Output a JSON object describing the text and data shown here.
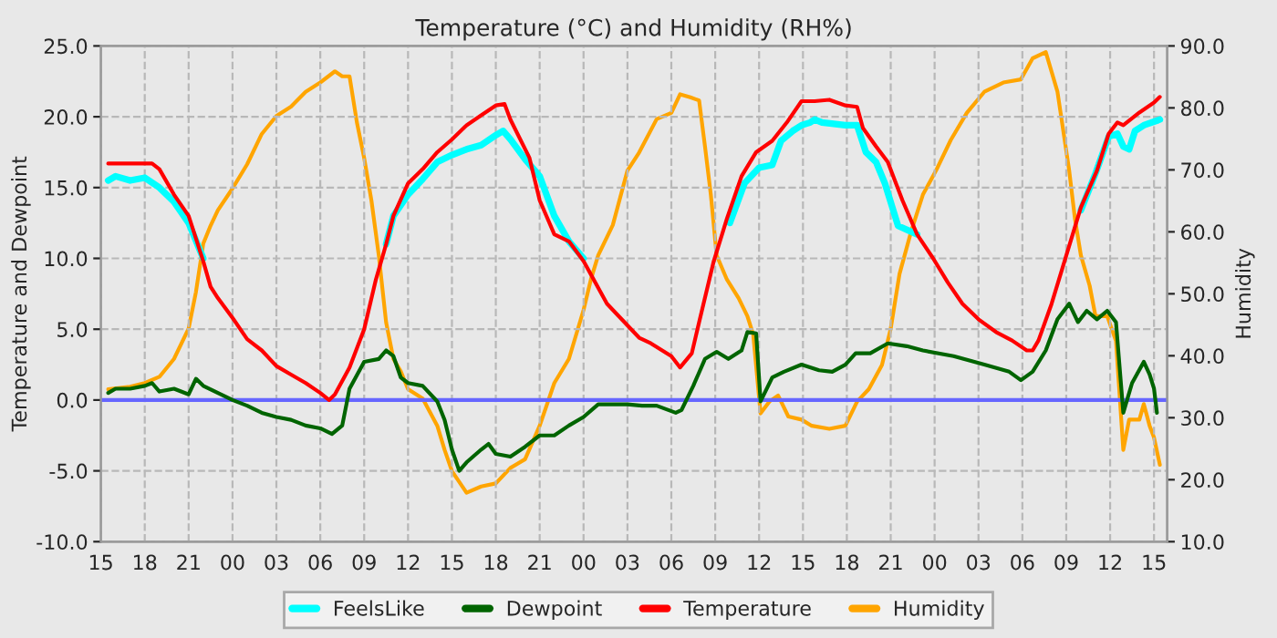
{
  "chart_data": {
    "type": "line",
    "title": "Temperature (°C) and Humidity (RH%)",
    "ylabel": "Temperature and Dewpoint",
    "y2label": "Humidity",
    "xlim": [
      15,
      87.9
    ],
    "xticks": [
      {
        "value": 15,
        "label": "15"
      },
      {
        "value": 18,
        "label": "18"
      },
      {
        "value": 21,
        "label": "21"
      },
      {
        "value": 24,
        "label": "00"
      },
      {
        "value": 27,
        "label": "03"
      },
      {
        "value": 30,
        "label": "06"
      },
      {
        "value": 33,
        "label": "09"
      },
      {
        "value": 36,
        "label": "12"
      },
      {
        "value": 39,
        "label": "15"
      },
      {
        "value": 42,
        "label": "18"
      },
      {
        "value": 45,
        "label": "21"
      },
      {
        "value": 48,
        "label": "00"
      },
      {
        "value": 51,
        "label": "03"
      },
      {
        "value": 54,
        "label": "06"
      },
      {
        "value": 57,
        "label": "09"
      },
      {
        "value": 60,
        "label": "12"
      },
      {
        "value": 63,
        "label": "15"
      },
      {
        "value": 66,
        "label": "18"
      },
      {
        "value": 69,
        "label": "21"
      },
      {
        "value": 72,
        "label": "00"
      },
      {
        "value": 75,
        "label": "03"
      },
      {
        "value": 78,
        "label": "06"
      },
      {
        "value": 81,
        "label": "09"
      },
      {
        "value": 84,
        "label": "12"
      },
      {
        "value": 87,
        "label": "15"
      }
    ],
    "ylim": [
      -10,
      25
    ],
    "yticks": [
      {
        "value": -10,
        "label": "-10.0"
      },
      {
        "value": -5,
        "label": "-5.0"
      },
      {
        "value": 0,
        "label": "0.0"
      },
      {
        "value": 5,
        "label": "5.0"
      },
      {
        "value": 10,
        "label": "10.0"
      },
      {
        "value": 15,
        "label": "15.0"
      },
      {
        "value": 20,
        "label": "20.0"
      },
      {
        "value": 25,
        "label": "25.0"
      }
    ],
    "y2lim": [
      10,
      90
    ],
    "y2ticks": [
      {
        "value": 10,
        "label": "10.0"
      },
      {
        "value": 20,
        "label": "20.0"
      },
      {
        "value": 30,
        "label": "30.0"
      },
      {
        "value": 40,
        "label": "40.0"
      },
      {
        "value": 50,
        "label": "50.0"
      },
      {
        "value": 60,
        "label": "60.0"
      },
      {
        "value": 70,
        "label": "70.0"
      },
      {
        "value": 80,
        "label": "80.0"
      },
      {
        "value": 90,
        "label": "90.0"
      }
    ],
    "grid": true,
    "legend": "bottom",
    "ref_lines": [
      {
        "axis": "y",
        "value": 0,
        "color": "#6666ff"
      }
    ],
    "series": [
      {
        "name": "FeelsLike",
        "color": "#00ffff",
        "x": [
          15.5,
          16,
          17,
          18,
          19,
          20,
          21,
          22,
          22.5,
          33.8,
          34.5,
          35,
          36,
          37,
          38,
          39,
          40,
          41,
          42,
          42.5,
          43,
          44,
          45,
          46,
          47,
          48,
          48.5,
          57,
          58,
          59,
          60,
          60.9,
          61.5,
          62.3,
          62.9,
          63.5,
          63.8,
          64.3,
          65.9,
          66.7,
          67.3,
          68.0,
          68.6,
          69.5,
          70.8,
          71.3,
          81,
          82,
          83,
          83.9,
          84.5,
          84.9,
          85.3,
          85.7,
          86.3,
          87.4
        ],
        "values": [
          15.5,
          15.8,
          15.5,
          15.7,
          15.0,
          14.0,
          12.5,
          10.0,
          null,
          null,
          11.0,
          13.0,
          14.5,
          15.6,
          16.8,
          17.3,
          17.7,
          18.0,
          18.7,
          19.0,
          18.4,
          17.0,
          15.8,
          13.0,
          11.2,
          10.0,
          null,
          null,
          12.5,
          15.3,
          16.4,
          16.6,
          18.3,
          19.0,
          19.4,
          19.6,
          19.8,
          19.6,
          19.4,
          19.4,
          17.5,
          16.8,
          15.3,
          12.3,
          11.7,
          null,
          null,
          13.4,
          16.0,
          18.6,
          18.8,
          17.9,
          17.7,
          19.0,
          19.4,
          19.8
        ]
      },
      {
        "name": "Dewpoint",
        "color": "#006400",
        "x": [
          15.5,
          16,
          17,
          18,
          18.5,
          19,
          20,
          21,
          21.5,
          22,
          23,
          24,
          25,
          26,
          27,
          28,
          29,
          30,
          30.8,
          31.5,
          32,
          33,
          34,
          34.5,
          35,
          35.5,
          36,
          37,
          38,
          38.5,
          39,
          39.5,
          40,
          41,
          41.5,
          42,
          43,
          44,
          45,
          46,
          47,
          48,
          49,
          50,
          51,
          52,
          53,
          54.3,
          54.7,
          55.5,
          56.3,
          57.1,
          57.9,
          58.8,
          59.2,
          59.8,
          60.1,
          60.9,
          61.7,
          62.9,
          64.1,
          65.0,
          65.9,
          66.6,
          67.6,
          68.8,
          70.1,
          71.2,
          73.3,
          75.4,
          77.1,
          77.9,
          78.7,
          79.6,
          80.4,
          81.2,
          81.8,
          82.4,
          83.1,
          83.8,
          84.4,
          84.9,
          85.5,
          86.3,
          86.7,
          87.0,
          87.2
        ],
        "values": [
          0.5,
          0.8,
          0.8,
          1.0,
          1.2,
          0.6,
          0.8,
          0.4,
          1.5,
          1.0,
          0.5,
          0.0,
          -0.4,
          -0.9,
          -1.2,
          -1.4,
          -1.8,
          -2.0,
          -2.4,
          -1.8,
          0.8,
          2.7,
          2.9,
          3.5,
          3.1,
          1.6,
          1.2,
          1.0,
          -0.1,
          -1.4,
          -3.5,
          -5.0,
          -4.4,
          -3.5,
          -3.1,
          -3.8,
          -4.0,
          -3.3,
          -2.5,
          -2.5,
          -1.8,
          -1.2,
          -0.3,
          -0.3,
          -0.3,
          -0.4,
          -0.4,
          -0.9,
          -0.7,
          1.0,
          2.9,
          3.4,
          2.9,
          3.5,
          4.8,
          4.7,
          -0.1,
          1.6,
          2.0,
          2.5,
          2.1,
          2.0,
          2.5,
          3.3,
          3.3,
          4.0,
          3.8,
          3.5,
          3.1,
          2.5,
          2.0,
          1.4,
          2.0,
          3.5,
          5.7,
          6.8,
          5.5,
          6.3,
          5.7,
          6.3,
          5.5,
          -0.9,
          1.2,
          2.7,
          1.8,
          0.8,
          -0.9
        ]
      },
      {
        "name": "Temperature",
        "color": "#ff0000",
        "x": [
          15.5,
          17,
          18.5,
          19,
          20,
          21,
          22,
          22.5,
          23,
          24,
          25,
          26,
          27,
          28,
          29,
          30,
          30.6,
          31,
          32,
          33,
          33.8,
          34.5,
          35,
          36,
          37,
          38,
          39,
          40,
          41,
          42,
          42.6,
          43,
          44.3,
          45,
          46,
          47,
          48,
          49.6,
          51.8,
          52.6,
          54.0,
          54.6,
          55.4,
          55.9,
          56.9,
          57.8,
          58.8,
          59.8,
          60.9,
          61.9,
          62.9,
          63.8,
          64.8,
          65.9,
          66.7,
          67.1,
          68.0,
          68.8,
          69.8,
          70.8,
          71.9,
          72.9,
          73.9,
          75.0,
          76.2,
          77.3,
          78.3,
          78.7,
          79.1,
          80.0,
          81.0,
          82.0,
          83.1,
          83.9,
          84.5,
          84.9,
          86.0,
          87.0,
          87.4
        ],
        "values": [
          16.7,
          16.7,
          16.7,
          16.3,
          14.5,
          13.0,
          9.8,
          8.0,
          7.2,
          5.8,
          4.3,
          3.5,
          2.4,
          1.8,
          1.2,
          0.5,
          0.0,
          0.4,
          2.3,
          5.0,
          8.5,
          11.0,
          13.0,
          15.3,
          16.3,
          17.5,
          18.4,
          19.4,
          20.1,
          20.8,
          20.9,
          19.8,
          17.1,
          14.1,
          11.7,
          11.2,
          9.8,
          6.8,
          4.4,
          4.0,
          3.1,
          2.3,
          3.3,
          5.5,
          9.8,
          12.8,
          15.8,
          17.5,
          18.3,
          19.6,
          21.1,
          21.1,
          21.2,
          20.8,
          20.7,
          19.2,
          17.9,
          16.8,
          14.1,
          11.7,
          10.0,
          8.3,
          6.8,
          5.7,
          4.8,
          4.2,
          3.5,
          3.5,
          4.2,
          6.8,
          10.2,
          13.6,
          16.2,
          18.8,
          19.6,
          19.4,
          20.3,
          21.0,
          21.4
        ]
      },
      {
        "name": "Humidity",
        "color": "#ffa500",
        "axis": "y2",
        "x": [
          15.5,
          17,
          18,
          19,
          20,
          21,
          21.5,
          22,
          22.5,
          23,
          24,
          25,
          26,
          27,
          28,
          29,
          30,
          31,
          31.5,
          32,
          32.5,
          33,
          33.5,
          34,
          34.5,
          35,
          35.5,
          36,
          37,
          38,
          38.5,
          39,
          40,
          41,
          42,
          43,
          44,
          45,
          46,
          47,
          48,
          48.5,
          49,
          50,
          51,
          51.8,
          53.0,
          54.0,
          54.6,
          55.3,
          55.9,
          56.3,
          56.7,
          57.1,
          57.8,
          58.6,
          59.2,
          59.6,
          60.1,
          60.7,
          61.3,
          62.0,
          62.9,
          63.6,
          64.8,
          65.9,
          66.7,
          67.5,
          68.4,
          69.0,
          69.6,
          70.4,
          71.2,
          72.1,
          73.1,
          74.2,
          75.4,
          76.7,
          77.9,
          78.7,
          79.6,
          80.4,
          81.2,
          81.6,
          82.0,
          82.6,
          83.0,
          83.8,
          84.4,
          84.9,
          85.3,
          86.0,
          86.3,
          86.7,
          87.0,
          87.4
        ],
        "values": [
          34.6,
          35.0,
          35.6,
          36.6,
          39.5,
          44.4,
          50.3,
          58.1,
          61.0,
          63.5,
          67.0,
          70.9,
          75.8,
          78.7,
          80.2,
          82.6,
          84.1,
          85.9,
          85.1,
          85.1,
          77.7,
          71.9,
          65.0,
          56.2,
          45.4,
          39.5,
          37.5,
          34.6,
          33.1,
          28.7,
          24.8,
          21.4,
          17.9,
          18.9,
          19.4,
          21.9,
          23.3,
          28.7,
          35.6,
          39.5,
          47.4,
          52.3,
          56.2,
          61.1,
          69.9,
          72.8,
          78.2,
          79.2,
          82.2,
          81.7,
          81.2,
          73.8,
          66.0,
          56.2,
          52.3,
          49.3,
          46.4,
          43.4,
          30.7,
          32.6,
          33.6,
          30.2,
          29.7,
          28.7,
          28.2,
          28.7,
          32.6,
          34.6,
          38.5,
          44.4,
          53.2,
          60.1,
          66.0,
          69.9,
          74.8,
          79.2,
          82.6,
          84.1,
          84.6,
          88.0,
          89.0,
          82.6,
          69.9,
          62.0,
          56.2,
          51.3,
          46.4,
          46.4,
          42.4,
          24.8,
          29.7,
          29.7,
          32.2,
          28.7,
          26.8,
          22.4
        ]
      }
    ]
  }
}
